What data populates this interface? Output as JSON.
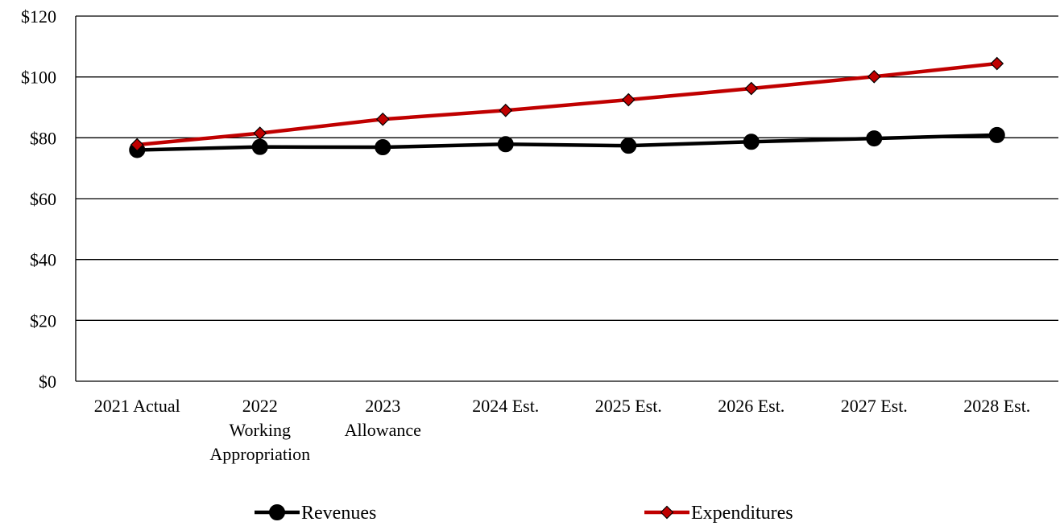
{
  "chart_data": {
    "type": "line",
    "categories": [
      [
        "2021 Actual"
      ],
      [
        "2022",
        "Working",
        "Appropriation"
      ],
      [
        "2023",
        "Allowance"
      ],
      [
        "2024 Est."
      ],
      [
        "2025 Est."
      ],
      [
        "2026 Est."
      ],
      [
        "2027 Est."
      ],
      [
        "2028 Est."
      ]
    ],
    "ylim": [
      0,
      120
    ],
    "yticks": [
      0,
      20,
      40,
      60,
      80,
      100,
      120
    ],
    "ytick_labels": [
      "$0",
      "$20",
      "$40",
      "$60",
      "$80",
      "$100",
      "$120"
    ],
    "grid": true,
    "legend": "bottom",
    "series": [
      {
        "name": "Revenues",
        "values": [
          76.0,
          77.0,
          76.9,
          77.9,
          77.4,
          78.7,
          79.8,
          80.9
        ],
        "color": "#000000",
        "marker": "circle"
      },
      {
        "name": "Expenditures",
        "values": [
          77.7,
          81.5,
          86.1,
          89.0,
          92.5,
          96.2,
          100.1,
          104.4
        ],
        "color": "#c00000",
        "marker": "diamond"
      }
    ]
  }
}
